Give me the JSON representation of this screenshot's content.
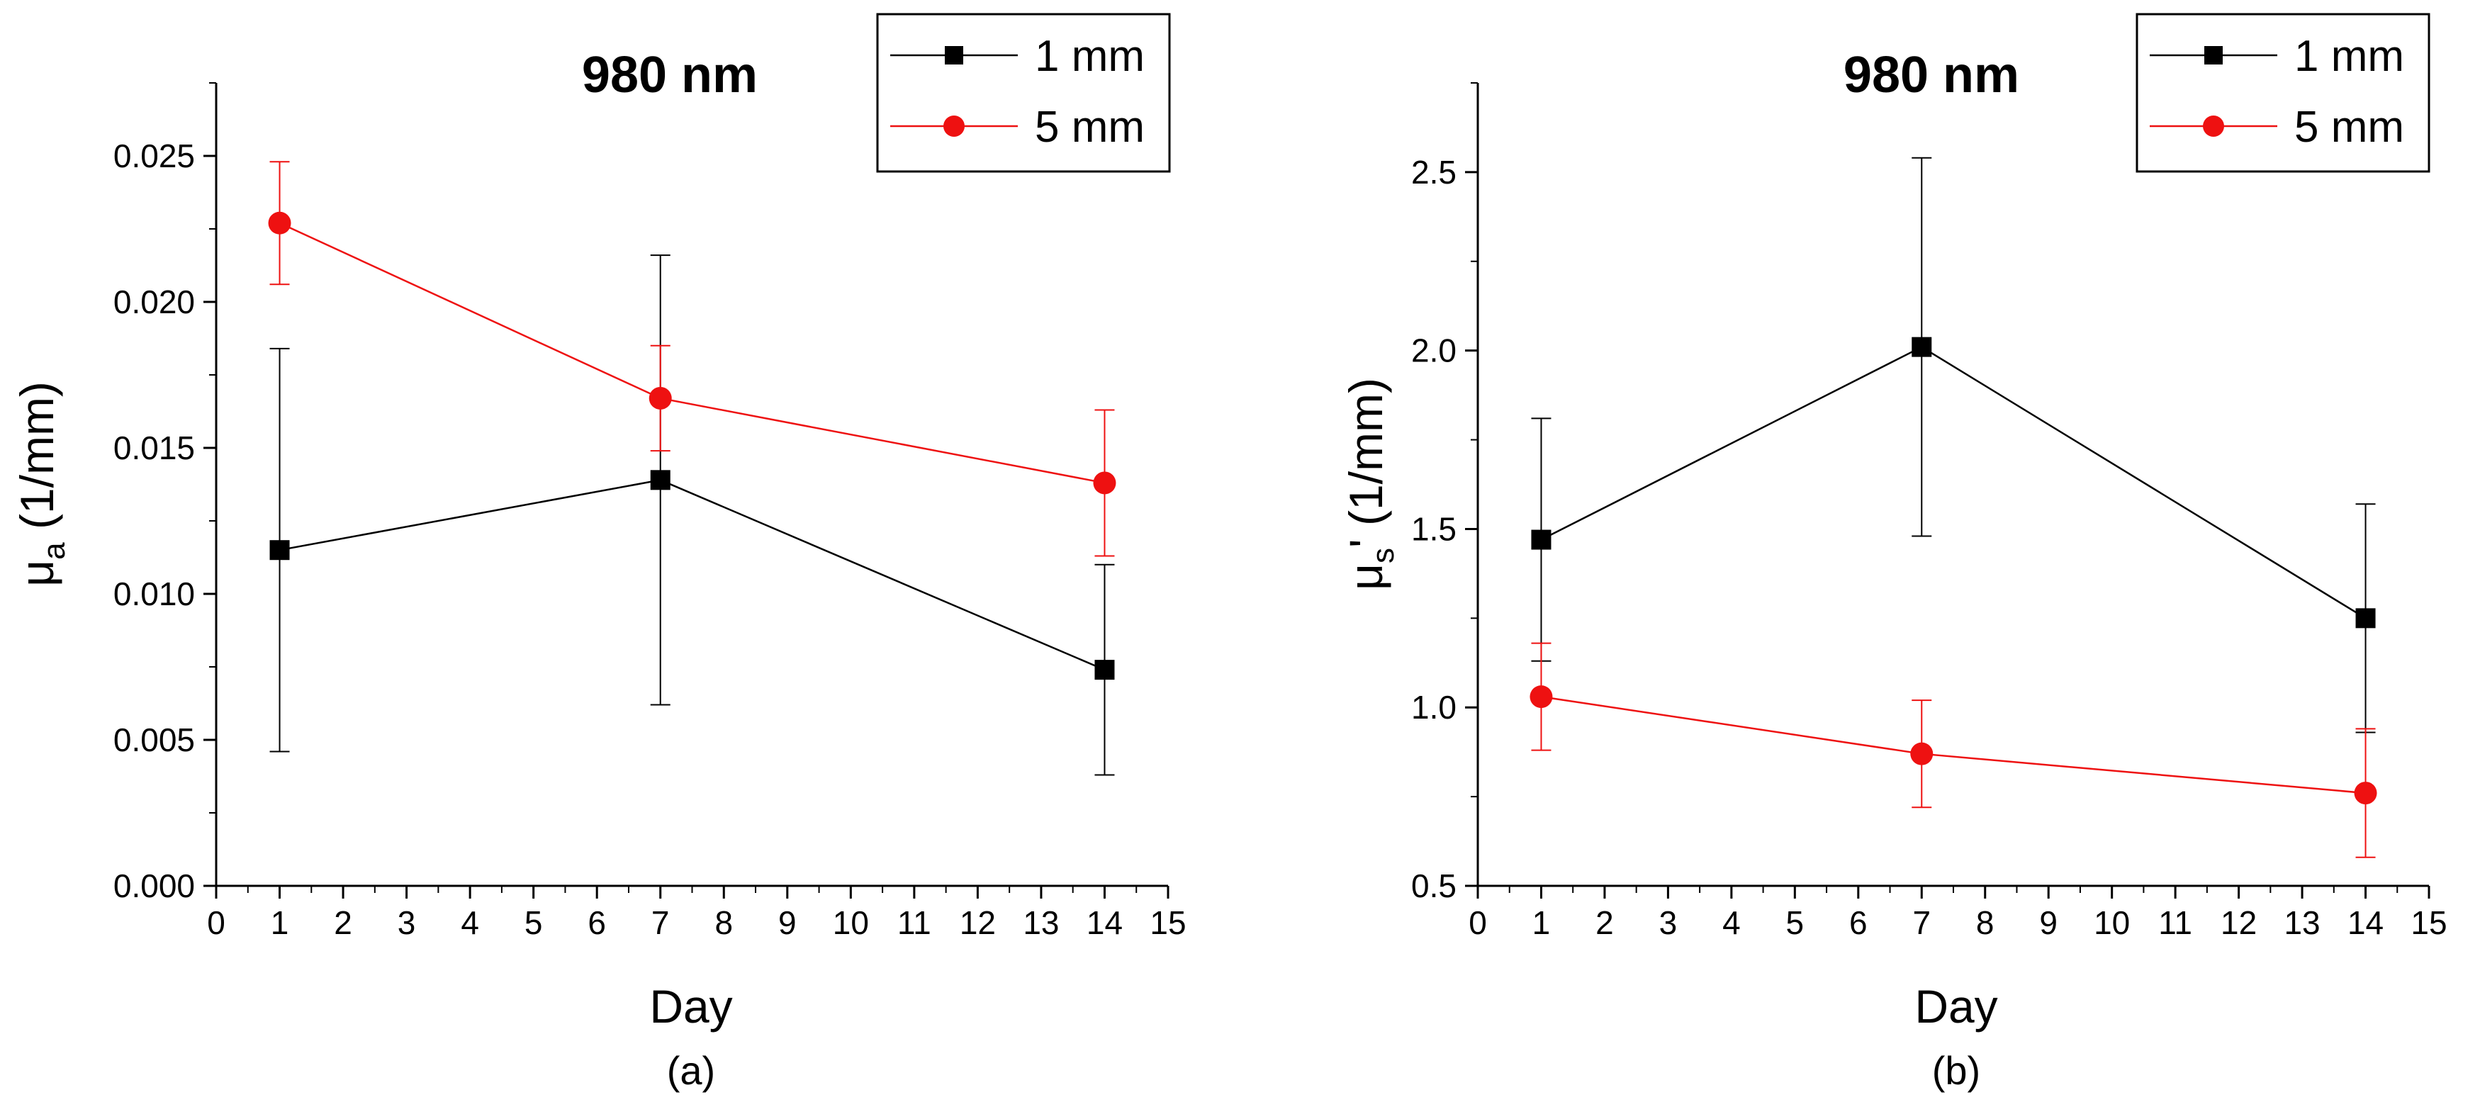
{
  "colors": {
    "series_1mm": "#000000",
    "series_5mm": "#ee1111"
  },
  "chart_data": [
    {
      "type": "line",
      "panel_label": "(a)",
      "title": "980 nm",
      "xlabel": "Day",
      "ylabel_base": "μ",
      "ylabel_sub": "a",
      "ylabel_suffix": " (1/mm)",
      "xlim": [
        0,
        15
      ],
      "ylim": [
        0,
        0.0275
      ],
      "xticks": [
        0,
        1,
        2,
        3,
        4,
        5,
        6,
        7,
        8,
        9,
        10,
        11,
        12,
        13,
        14,
        15
      ],
      "yticks": [
        0.0,
        0.005,
        0.01,
        0.015,
        0.02,
        0.025
      ],
      "ytick_labels": [
        "0.000",
        "0.005",
        "0.010",
        "0.015",
        "0.020",
        "0.025"
      ],
      "grid": false,
      "legend": "top-right",
      "series": [
        {
          "name": "1 mm",
          "marker": "square",
          "x": [
            1,
            7,
            14
          ],
          "y": [
            0.0115,
            0.0139,
            0.0074
          ],
          "err": [
            0.0069,
            0.0077,
            0.0036
          ]
        },
        {
          "name": "5 mm",
          "marker": "circle",
          "x": [
            1,
            7,
            14
          ],
          "y": [
            0.0227,
            0.0167,
            0.0138
          ],
          "err": [
            0.0021,
            0.0018,
            0.0025
          ]
        }
      ]
    },
    {
      "type": "line",
      "panel_label": "(b)",
      "title": "980 nm",
      "xlabel": "Day",
      "ylabel_base": "μ",
      "ylabel_sub": "s",
      "ylabel_suffix": "' (1/mm)",
      "xlim": [
        0,
        15
      ],
      "ylim": [
        0.5,
        2.75
      ],
      "xticks": [
        0,
        1,
        2,
        3,
        4,
        5,
        6,
        7,
        8,
        9,
        10,
        11,
        12,
        13,
        14,
        15
      ],
      "yticks": [
        0.5,
        1.0,
        1.5,
        2.0,
        2.5
      ],
      "ytick_labels": [
        "0.5",
        "1.0",
        "1.5",
        "2.0",
        "2.5"
      ],
      "grid": false,
      "legend": "top-right",
      "series": [
        {
          "name": "1 mm",
          "marker": "square",
          "x": [
            1,
            7,
            14
          ],
          "y": [
            1.47,
            2.01,
            1.25
          ],
          "err": [
            0.34,
            0.53,
            0.32
          ]
        },
        {
          "name": "5 mm",
          "marker": "circle",
          "x": [
            1,
            7,
            14
          ],
          "y": [
            1.03,
            0.87,
            0.76
          ],
          "err": [
            0.15,
            0.15,
            0.18
          ]
        }
      ]
    }
  ]
}
